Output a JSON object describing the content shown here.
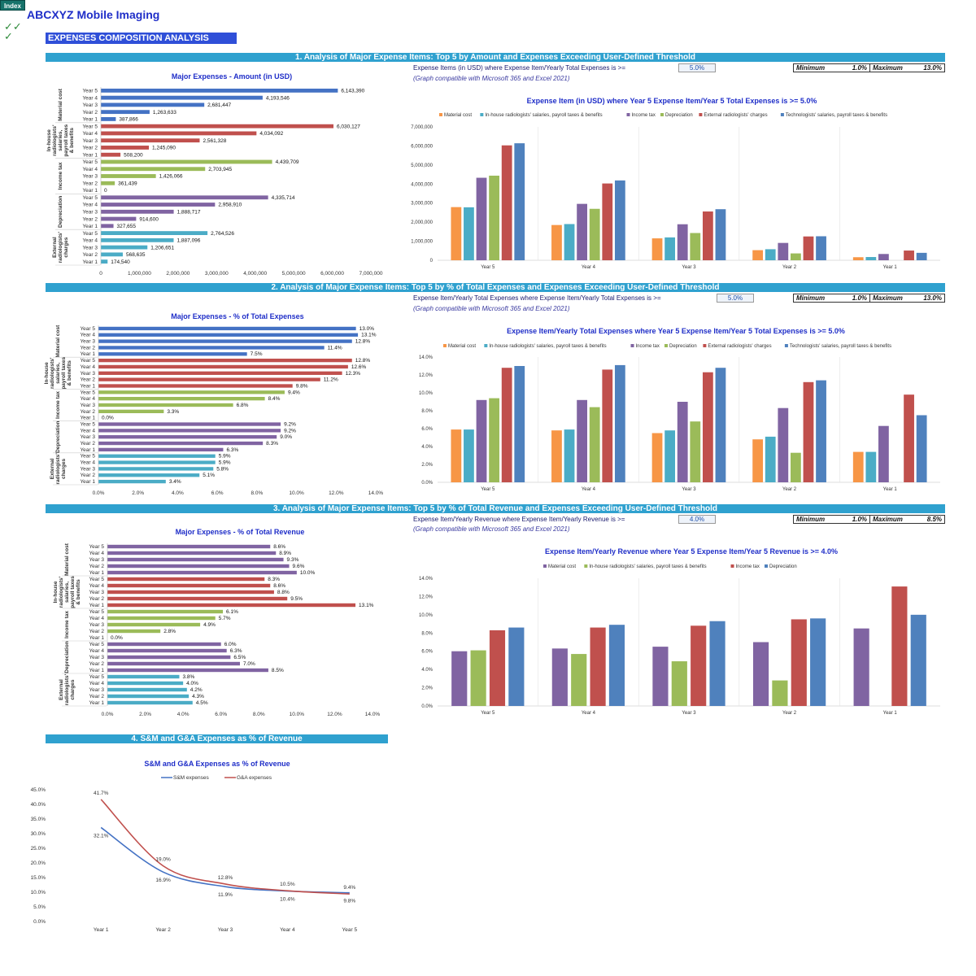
{
  "header": {
    "index_label": "Index",
    "app_title": "ABCXYZ Mobile Imaging",
    "check1": "✓✓",
    "check2": "✓",
    "subtitle": "EXPENSES COMPOSITION ANALYSIS"
  },
  "colors": {
    "material": "#f79646",
    "inhouse": "#4bacc6",
    "tax": "#8064a2",
    "dep": "#9bbb59",
    "external": "#c0504d",
    "technologists": "#4f81bd"
  },
  "section1": {
    "bar_title": "1. Analysis of Major Expense Items: Top 5 by Amount and Expenses Exceeding User-Defined Threshold",
    "note": "Expense Items (in USD) where Expense Item/Yearly Total Expenses is >=",
    "note2": "(Graph compatible with Microsoft 365 and Excel 2021)",
    "threshold": "5.0%",
    "min_label": "Minimum",
    "min_val": "1.0%",
    "max_label": "Maximum",
    "max_val": "13.0%"
  },
  "section2": {
    "bar_title": "2. Analysis of Major Expense Items: Top 5 by % of Total Expenses and Expenses Exceeding User-Defined Threshold",
    "note": "Expense Item/Yearly Total Expenses where Expense Item/Yearly Total Expenses is >=",
    "note2": "(Graph compatible with Microsoft 365 and Excel 2021)",
    "threshold": "5.0%",
    "min_label": "Minimum",
    "min_val": "1.0%",
    "max_label": "Maximum",
    "max_val": "13.0%"
  },
  "section3": {
    "bar_title": "3. Analysis of Major Expense Items: Top 5 by % of Total Revenue and Expenses Exceeding User-Defined Threshold",
    "note": "Expense Item/Yearly Revenue where Expense Item/Yearly Revenue is >=",
    "note2": "(Graph compatible with Microsoft 365 and Excel 2021)",
    "threshold": "4.0%",
    "min_label": "Minimum",
    "min_val": "1.0%",
    "max_label": "Maximum",
    "max_val": "8.5%"
  },
  "section4": {
    "bar_title": "4. S&M and G&A Expenses as % of Revenue"
  },
  "chart_data": [
    {
      "type": "bar",
      "orientation": "horizontal",
      "title": "Major Expenses - Amount (in USD)",
      "groups": [
        "Material cost",
        "In-house radiologists' salaries, payroll taxes & benefits",
        "Income tax",
        "Depreciation",
        "External radiologists' charges"
      ],
      "categories": [
        "Year 5",
        "Year 4",
        "Year 3",
        "Year 2",
        "Year 1"
      ],
      "values": [
        [
          6143390,
          4193546,
          2681447,
          1263633,
          387866
        ],
        [
          6030127,
          4034092,
          2561328,
          1245090,
          508200
        ],
        [
          4439709,
          2703945,
          1426066,
          361439,
          0
        ],
        [
          4335714,
          2958910,
          1888717,
          914600,
          327655
        ],
        [
          2764526,
          1887096,
          1206651,
          568635,
          174540
        ]
      ],
      "labels": [
        [
          "6,143,390",
          "4,193,546",
          "2,681,447",
          "1,263,633",
          "387,866"
        ],
        [
          "6,030,127",
          "4,034,092",
          "2,561,328",
          "1,245,090",
          "508,200"
        ],
        [
          "4,439,709",
          "2,703,945",
          "1,426,066",
          "361,439",
          "0"
        ],
        [
          "4,335,714",
          "2,958,910",
          "1,888,717",
          "914,600",
          "327,655"
        ],
        [
          "2,764,526",
          "1,887,096",
          "1,206,651",
          "568,635",
          "174,540"
        ]
      ],
      "group_colors": [
        "#4472c4",
        "#c0504d",
        "#9bbb59",
        "#8064a2",
        "#4bacc6"
      ],
      "xlim": [
        0,
        7000000
      ],
      "ticks": [
        "0",
        "1,000,000",
        "2,000,000",
        "3,000,000",
        "4,000,000",
        "5,000,000",
        "6,000,000",
        "7,000,000"
      ],
      "group_label_lines": [
        [
          "Material cost"
        ],
        [
          "In-house",
          "radiologists'",
          "salaries,",
          "payroll taxes",
          "& benefits"
        ],
        [
          "Income tax"
        ],
        [
          "Depreciation"
        ],
        [
          "External",
          "radiologists'",
          "charges"
        ]
      ]
    },
    {
      "type": "bar",
      "title": "Expense Item (in USD) where Year 5 Expense Item/Year 5 Total Expenses is >= 5.0%",
      "categories": [
        "Year 5",
        "Year 4",
        "Year 3",
        "Year 2",
        "Year 1"
      ],
      "series": [
        {
          "name": "Material cost",
          "values": [
            2790000,
            1850000,
            1150000,
            530000,
            160000
          ]
        },
        {
          "name": "In-house radiologists' salaries, payroll taxes & benefits",
          "values": [
            2780000,
            1900000,
            1200000,
            580000,
            170000
          ]
        },
        {
          "name": "Income tax",
          "values": [
            4330000,
            2960000,
            1890000,
            910000,
            330000
          ]
        },
        {
          "name": "Depreciation",
          "values": [
            4440000,
            2700000,
            1430000,
            360000,
            0
          ]
        },
        {
          "name": "External radiologists' charges",
          "values": [
            6030000,
            4030000,
            2560000,
            1250000,
            510000
          ]
        },
        {
          "name": "Technologists' salaries, payroll taxes & benefits",
          "values": [
            6140000,
            4190000,
            2680000,
            1260000,
            390000
          ]
        }
      ],
      "series_colors": [
        "#f79646",
        "#4bacc6",
        "#8064a2",
        "#9bbb59",
        "#c0504d",
        "#4f81bd"
      ],
      "ylim": [
        0,
        7000000
      ],
      "ticks": [
        "0",
        "1,000,000",
        "2,000,000",
        "3,000,000",
        "4,000,000",
        "5,000,000",
        "6,000,000",
        "7,000,000"
      ]
    },
    {
      "type": "bar",
      "orientation": "horizontal",
      "title": "Major Expenses - % of Total Expenses",
      "groups": [
        "Material cost",
        "In-house radiologists' salaries, payroll taxes & benefits",
        "Income tax",
        "Depreciation",
        "External radiologists' charges"
      ],
      "categories": [
        "Year 5",
        "Year 4",
        "Year 3",
        "Year 2",
        "Year 1"
      ],
      "values": [
        [
          13.0,
          13.1,
          12.8,
          11.4,
          7.5
        ],
        [
          12.8,
          12.6,
          12.3,
          11.2,
          9.8
        ],
        [
          9.4,
          8.4,
          6.8,
          3.3,
          0.0
        ],
        [
          9.2,
          9.2,
          9.0,
          8.3,
          6.3
        ],
        [
          5.9,
          5.9,
          5.8,
          5.1,
          3.4
        ]
      ],
      "labels": [
        [
          "13.0%",
          "13.1%",
          "12.8%",
          "11.4%",
          "7.5%"
        ],
        [
          "12.8%",
          "12.6%",
          "12.3%",
          "11.2%",
          "9.8%"
        ],
        [
          "9.4%",
          "8.4%",
          "6.8%",
          "3.3%",
          "0.0%"
        ],
        [
          "9.2%",
          "9.2%",
          "9.0%",
          "8.3%",
          "6.3%"
        ],
        [
          "5.9%",
          "5.9%",
          "5.8%",
          "5.1%",
          "3.4%"
        ]
      ],
      "group_colors": [
        "#4472c4",
        "#c0504d",
        "#9bbb59",
        "#8064a2",
        "#4bacc6"
      ],
      "xlim": [
        0,
        14
      ],
      "ticks": [
        "0.0%",
        "2.0%",
        "4.0%",
        "6.0%",
        "8.0%",
        "10.0%",
        "12.0%",
        "14.0%"
      ],
      "group_label_lines": [
        [
          "Material cost"
        ],
        [
          "In-house",
          "radiologists'",
          "salaries,",
          "payroll taxes",
          "& benefits"
        ],
        [
          "Income tax"
        ],
        [
          "Depreciation"
        ],
        [
          "External",
          "radiologists'",
          "charges"
        ]
      ]
    },
    {
      "type": "bar",
      "title": "Expense Item/Yearly Total Expenses where Year 5 Expense Item/Year 5 Total Expenses is >= 5.0%",
      "categories": [
        "Year 5",
        "Year 4",
        "Year 3",
        "Year 2",
        "Year 1"
      ],
      "series": [
        {
          "name": "Material cost",
          "values": [
            5.9,
            5.8,
            5.5,
            4.8,
            3.4
          ]
        },
        {
          "name": "In-house radiologists' salaries, payroll taxes & benefits",
          "values": [
            5.9,
            5.9,
            5.8,
            5.1,
            3.4
          ]
        },
        {
          "name": "Income tax",
          "values": [
            9.2,
            9.2,
            9.0,
            8.3,
            6.3
          ]
        },
        {
          "name": "Depreciation",
          "values": [
            9.4,
            8.4,
            6.8,
            3.3,
            0.0
          ]
        },
        {
          "name": "External radiologists' charges",
          "values": [
            12.8,
            12.6,
            12.3,
            11.2,
            9.8
          ]
        },
        {
          "name": "Technologists' salaries, payroll taxes & benefits",
          "values": [
            13.0,
            13.1,
            12.8,
            11.4,
            7.5
          ]
        }
      ],
      "series_colors": [
        "#f79646",
        "#4bacc6",
        "#8064a2",
        "#9bbb59",
        "#c0504d",
        "#4f81bd"
      ],
      "ylim": [
        0,
        14
      ],
      "ticks": [
        "0.0%",
        "2.0%",
        "4.0%",
        "6.0%",
        "8.0%",
        "10.0%",
        "12.0%",
        "14.0%"
      ]
    },
    {
      "type": "bar",
      "orientation": "horizontal",
      "title": "Major Expenses - % of Total Revenue",
      "groups": [
        "Material cost",
        "In-house radiologists' salaries, payroll taxes & benefits",
        "Income tax",
        "Depreciation",
        "External radiologists' charges"
      ],
      "categories": [
        "Year 5",
        "Year 4",
        "Year 3",
        "Year 2",
        "Year 1"
      ],
      "values": [
        [
          8.6,
          8.9,
          9.3,
          9.6,
          10.0
        ],
        [
          8.3,
          8.6,
          8.8,
          9.5,
          13.1
        ],
        [
          6.1,
          5.7,
          4.9,
          2.8,
          0.0
        ],
        [
          6.0,
          6.3,
          6.5,
          7.0,
          8.5
        ],
        [
          3.8,
          4.0,
          4.2,
          4.3,
          4.5
        ]
      ],
      "labels": [
        [
          "8.6%",
          "8.9%",
          "9.3%",
          "9.6%",
          "10.0%"
        ],
        [
          "8.3%",
          "8.6%",
          "8.8%",
          "9.5%",
          "13.1%"
        ],
        [
          "6.1%",
          "5.7%",
          "4.9%",
          "2.8%",
          "0.0%"
        ],
        [
          "6.0%",
          "6.3%",
          "6.5%",
          "7.0%",
          "8.5%"
        ],
        [
          "3.8%",
          "4.0%",
          "4.2%",
          "4.3%",
          "4.5%"
        ]
      ],
      "group_colors": [
        "#8064a2",
        "#c0504d",
        "#9bbb59",
        "#8064a2",
        "#4bacc6"
      ],
      "xlim": [
        0,
        14
      ],
      "ticks": [
        "0.0%",
        "2.0%",
        "4.0%",
        "6.0%",
        "8.0%",
        "10.0%",
        "12.0%",
        "14.0%"
      ],
      "group_label_lines": [
        [
          "Material cost"
        ],
        [
          "In-house",
          "radiologists'",
          "salaries,",
          "payroll taxes",
          "& benefits"
        ],
        [
          "Income tax"
        ],
        [
          "Depreciation"
        ],
        [
          "External",
          "radiologists'",
          "charges"
        ]
      ]
    },
    {
      "type": "bar",
      "title": "Expense Item/Yearly Revenue where Year 5 Expense Item/Year 5 Revenue is >= 4.0%",
      "categories": [
        "Year 5",
        "Year 4",
        "Year 3",
        "Year 2",
        "Year 1"
      ],
      "series": [
        {
          "name": "Material cost",
          "values": [
            6.0,
            6.3,
            6.5,
            7.0,
            8.5
          ]
        },
        {
          "name": "In-house radiologists' salaries, payroll taxes & benefits",
          "values": [
            6.1,
            5.7,
            4.9,
            2.8,
            0.0
          ]
        },
        {
          "name": "Income tax",
          "values": [
            8.3,
            8.6,
            8.8,
            9.5,
            13.1
          ]
        },
        {
          "name": "Depreciation",
          "values": [
            8.6,
            8.9,
            9.3,
            9.6,
            10.0
          ]
        }
      ],
      "series_colors": [
        "#8064a2",
        "#9bbb59",
        "#c0504d",
        "#4f81bd"
      ],
      "ylim": [
        0,
        14
      ],
      "ticks": [
        "0.0%",
        "2.0%",
        "4.0%",
        "6.0%",
        "8.0%",
        "10.0%",
        "12.0%",
        "14.0%"
      ]
    },
    {
      "type": "line",
      "title": "S&M and G&A Expenses as % of Revenue",
      "categories": [
        "Year 1",
        "Year 2",
        "Year 3",
        "Year 4",
        "Year 5"
      ],
      "series": [
        {
          "name": "S&M expenses",
          "values": [
            32.1,
            16.9,
            11.9,
            10.4,
            9.8
          ],
          "labels": [
            "32.1%",
            "16.9%",
            "11.9%",
            "10.4%",
            "9.8%"
          ]
        },
        {
          "name": "G&A expenses",
          "values": [
            41.7,
            19.0,
            12.8,
            10.5,
            9.4
          ],
          "labels": [
            "41.7%",
            "19.0%",
            "12.8%",
            "10.5%",
            "9.4%"
          ]
        }
      ],
      "series_colors": [
        "#4472c4",
        "#c0504d"
      ],
      "ylim": [
        0,
        45
      ],
      "ticks": [
        "0.0%",
        "5.0%",
        "10.0%",
        "15.0%",
        "20.0%",
        "25.0%",
        "30.0%",
        "35.0%",
        "40.0%",
        "45.0%"
      ]
    }
  ]
}
